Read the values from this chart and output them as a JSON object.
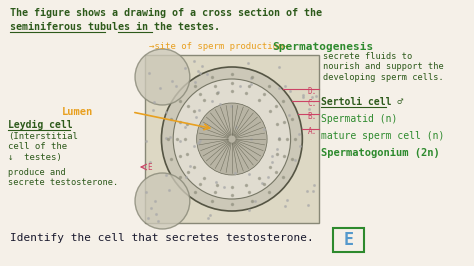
{
  "bg_color": "#f5f0e8",
  "title_line1": "The figure shows a drawing of a cross section of the",
  "title_line2": "seminiferous tubules in the testes.",
  "title_color": "#2d5a1b",
  "label_spermatogenesis": "Spermatogenesis",
  "label_spermatogenesis_color": "#2d8a2d",
  "label_lumen": "Lumen",
  "label_lumen_color": "#e8a020",
  "label_leydig": "Leydig cell",
  "label_leydig_sub": "(Interstitial\ncell of the\n↓  testes)",
  "label_leydig_color": "#2d5a1b",
  "label_leydig_produce": "produce and\nsecrete testosterone.",
  "label_sertoli": "Sertoli cell ♂",
  "label_sertoli_color": "#2d5a1b",
  "label_spermatid": "Spermatid (n)",
  "label_mature": "mature sperm cell (n)",
  "label_spermatogonium": "Spermatogonium (2n)",
  "label_right_color": "#2d8a2d",
  "label_secrete_fluids": "secrete fluids to\nnourish and support the\ndeveloping sperm cells.",
  "label_secrete_color": "#2d5a1b",
  "bottom_text": "Identify the cell that secretes testosterone.",
  "bottom_color": "#1a1a2e",
  "answer_E": "E",
  "answer_color": "#5599cc",
  "answer_box_color": "#2d8a2d",
  "arrow_color": "#e8a020",
  "line_color": "#cc4466",
  "point_label_color": "#cc4466"
}
